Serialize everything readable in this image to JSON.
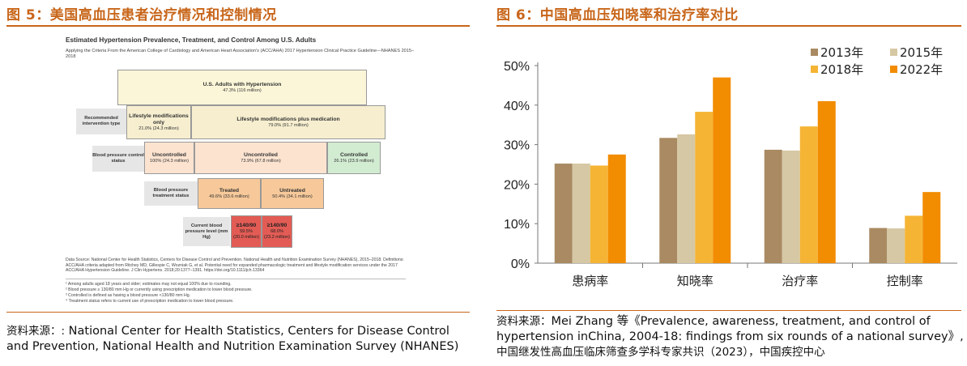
{
  "left": {
    "title": "图 5：美国高血压患者治疗情况和控制情况",
    "figure": {
      "title": "Estimated Hypertension Prevalence, Treatment, and Control Among U.S. Adults",
      "subtitle": "Applying the Criteria From the American College of Cardiology and American Heart Association's (ACC/AHA) 2017 Hypertension Clinical Practice Guideline—NHANES 2015–2018",
      "top_box": {
        "title": "U.S. Adults with Hypertension",
        "value": "47.3% (116 million)"
      },
      "row_labels": {
        "intervention": "Recommended intervention type",
        "control": "Blood pressure control status",
        "treatment": "Blood pressure treatment status",
        "level": "Current blood pressure level (mm Hg)"
      },
      "lifestyle_only": {
        "title": "Lifestyle modifications only",
        "value": "21.0% (24.3 million)"
      },
      "lifestyle_plus": {
        "title": "Lifestyle modifications plus medication",
        "value": "79.0% (91.7 million)"
      },
      "uncontrolled_a": {
        "title": "Uncontrolled",
        "value": "100% (24.3 million)"
      },
      "uncontrolled_b": {
        "title": "Uncontrolled",
        "value": "73.9% (67.8 million)"
      },
      "controlled": {
        "title": "Controlled",
        "value": "26.1% (23.9 million)"
      },
      "treated": {
        "title": "Treated",
        "value": "49.6% (33.6 million)"
      },
      "untreated": {
        "title": "Untreated",
        "value": "50.4% (34.1 million)"
      },
      "level_a": {
        "title": "≥140/90",
        "pct": "59.5%",
        "value": "(20.0 million)"
      },
      "level_b": {
        "title": "≥140/90",
        "pct": "68.0%",
        "value": "(23.2 million)"
      },
      "data_source": "Data Source: National Center for Health Statistics, Centers for Disease Control and Prevention. National Health and Nutrition Examination Survey (NHANES), 2015–2018. Definitions: ACC/AHA criteria adapted from Ritchey MD, Gillespie C, Wozniak G, et al. Potential need for expanded pharmacologic treatment and lifestyle modification services under the 2017 ACC/AHA Hypertension Guideline. J Clin Hypertens. 2018;20:1377–1391. https://doi.org/10.1111/jch.13364",
      "footnotes": [
        "¹ Among adults aged 18 years and older; estimates may not equal 100% due to rounding.",
        "² Blood pressure ≥ 130/80 mm Hg or currently using prescription medication to lower blood pressure.",
        "³ Controlled is defined as having a blood pressure <130/80 mm Hg.",
        "⁴ Treatment status refers to current use of prescription medication to lower blood pressure."
      ]
    },
    "source_prefix": "资料来源：:",
    "source_text": "National Center for Health Statistics, Centers for Disease Control and Prevention, National Health and Nutrition Examination Survey (NHANES)"
  },
  "right": {
    "title": "图 6：中国高血压知晓率和治疗率对比",
    "source_prefix": "资料来源：",
    "source_line1": "Mei Zhang 等《Prevalence, awareness, treatment, and control of",
    "source_line2": "hypertension inChina, 2004-18: findings from six rounds of a national survey》,",
    "source_line3": "中国继发性高血压临床筛查多学科专家共识（2023），中国疾控中心"
  },
  "chart_data": {
    "type": "bar",
    "categories": [
      "患病率",
      "知晓率",
      "治疗率",
      "控制率"
    ],
    "series": [
      {
        "name": "2013年",
        "color": "#a98a62",
        "values": [
          25.2,
          31.7,
          28.7,
          8.9
        ]
      },
      {
        "name": "2015年",
        "color": "#d6c8a4",
        "values": [
          25.2,
          32.6,
          28.5,
          8.8
        ]
      },
      {
        "name": "2018年",
        "color": "#f5b434",
        "values": [
          24.7,
          38.3,
          34.6,
          12.0
        ]
      },
      {
        "name": "2022年",
        "color": "#f28c00",
        "values": [
          27.5,
          47.0,
          41.0,
          18.0
        ]
      }
    ],
    "yticks": [
      "0%",
      "10%",
      "20%",
      "30%",
      "40%",
      "50%"
    ],
    "ylim": [
      0,
      50
    ],
    "legend": "top-right",
    "grid": false
  }
}
